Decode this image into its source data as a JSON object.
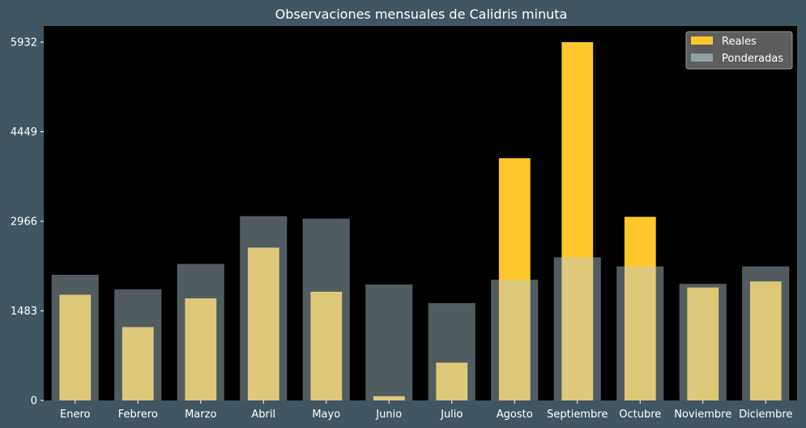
{
  "chart_data": {
    "type": "bar",
    "title": "Observaciones mensuales de Calidris minuta",
    "xlabel": "",
    "ylabel": "",
    "categories": [
      "Enero",
      "Febrero",
      "Marzo",
      "Abril",
      "Mayo",
      "Junio",
      "Julio",
      "Agosto",
      "Septiembre",
      "Octubre",
      "Noviembre",
      "Diciembre"
    ],
    "yticks": [
      0,
      1483,
      2966,
      4449,
      5932
    ],
    "ytick_labels": [
      "0",
      "1483",
      "2966",
      "4449",
      "5932"
    ],
    "ylim": [
      0,
      6200
    ],
    "grid": false,
    "legend_position": "top-right",
    "series": [
      {
        "name": "Reales",
        "color": "#ffc72c",
        "values": [
          1750,
          1215,
          1690,
          2530,
          1800,
          70,
          625,
          4010,
          5932,
          3040,
          1870,
          1970
        ]
      },
      {
        "name": "Ponderadas",
        "color": "#b4cdd6",
        "values": [
          2080,
          1840,
          2260,
          3050,
          3010,
          1920,
          1610,
          2000,
          2370,
          2220,
          1930,
          2220
        ]
      }
    ],
    "colors": {
      "background": "#405763",
      "plot_background": "#000000",
      "text": "#ffffff"
    }
  }
}
